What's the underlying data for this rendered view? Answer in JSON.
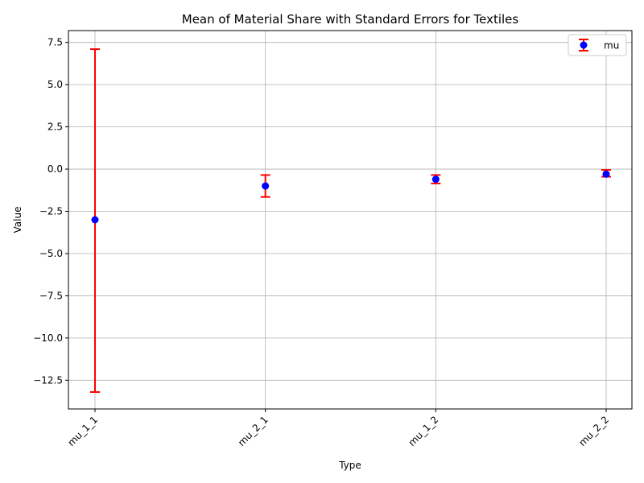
{
  "chart_data": {
    "type": "scatter",
    "title": "Mean of Material Share with Standard Errors for Textiles",
    "xlabel": "Type",
    "ylabel": "Value",
    "categories": [
      "mu_1_1",
      "mu_2_1",
      "mu_1_2",
      "mu_2_2"
    ],
    "ylim": [
      -14.2,
      8.2
    ],
    "yticks": [
      7.5,
      5.0,
      2.5,
      0.0,
      -2.5,
      -5.0,
      -7.5,
      -10.0,
      -12.5
    ],
    "ytick_labels": [
      "7.5",
      "5.0",
      "2.5",
      "0.0",
      "−2.5",
      "−5.0",
      "−7.5",
      "−10.0",
      "−12.5"
    ],
    "grid": true,
    "legend_position": "top-right",
    "series": [
      {
        "name": "mu",
        "values": [
          -3.0,
          -1.0,
          -0.6,
          -0.3
        ],
        "lower": [
          -13.2,
          -1.65,
          -0.85,
          -0.45
        ],
        "upper": [
          7.1,
          -0.35,
          -0.35,
          -0.05
        ],
        "marker_color": "#0000ff",
        "errorbar_color": "#ff0000"
      }
    ]
  }
}
